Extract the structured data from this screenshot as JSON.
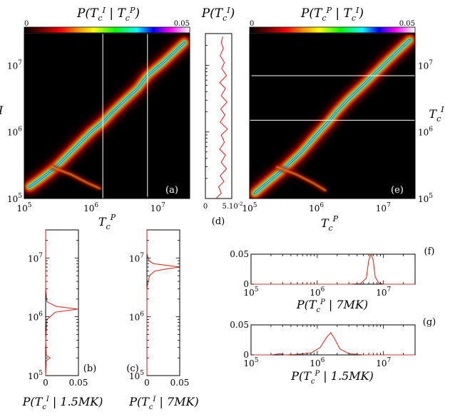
{
  "figure": {
    "colorbar_left": {
      "title": "P(T_c^I | T_c^P)",
      "min_label": "0",
      "max_label": "0.05"
    },
    "colorbar_right": {
      "title": "P(T_c^P | T_c^I)",
      "min_label": "0",
      "max_label": "0.05"
    },
    "panel_d_title": "P(T_c^I)"
  },
  "chart_data": [
    {
      "panel": "a",
      "type": "heatmap",
      "label": "(a)",
      "xlabel": "T_c^P",
      "ylabel": "T_c^I",
      "xscale": "log",
      "yscale": "log",
      "xlim": [
        100000,
        30000000
      ],
      "ylim": [
        100000,
        30000000
      ],
      "xticks": [
        "10^5",
        "10^6",
        "10^7"
      ],
      "yticks": [
        "10^5",
        "10^6",
        "10^7"
      ],
      "color_range": [
        0,
        0.05
      ],
      "vertical_lines_at": [
        1500000,
        7000000
      ],
      "ridge": {
        "x": [
          120000,
          180000,
          300000,
          600000,
          1000000,
          1500000,
          2000000,
          3000000,
          5000000,
          7000000,
          12000000,
          25000000
        ],
        "y": [
          150000,
          200000,
          300000,
          600000,
          1000000,
          1400000,
          1900000,
          2800000,
          4500000,
          7000000,
          11000000,
          22000000
        ]
      }
    },
    {
      "panel": "b",
      "type": "line",
      "label": "(b)",
      "title": "P(T_c^I | 1.5MK)",
      "xlim": [
        0,
        0.05
      ],
      "xticks": [
        "0",
        "0.05"
      ],
      "yscale": "log",
      "ylim": [
        100000,
        30000000
      ],
      "yticks": [
        "10^5",
        "10^6",
        "10^7"
      ],
      "series": [
        {
          "y": [
            100000,
            180000,
            200000,
            220000,
            400000,
            900000,
            1200000,
            1350000,
            1500000,
            1800000,
            3000000,
            30000000
          ],
          "x": [
            0,
            0.001,
            0.007,
            0.001,
            0,
            0.002,
            0.015,
            0.049,
            0.016,
            0.002,
            0,
            0
          ]
        }
      ]
    },
    {
      "panel": "c",
      "type": "line",
      "label": "(c)",
      "title": "P(T_c^I | 7MK)",
      "xlim": [
        0,
        0.05
      ],
      "xticks": [
        "0",
        "0.05"
      ],
      "yscale": "log",
      "ylim": [
        100000,
        30000000
      ],
      "yticks": [
        "10^5",
        "10^6",
        "10^7"
      ],
      "series": [
        {
          "y": [
            100000,
            3000000,
            4000000,
            5000000,
            6000000,
            6500000,
            7000000,
            7500000,
            8000000,
            9000000,
            12000000,
            30000000
          ],
          "x": [
            0,
            0,
            0.002,
            0.004,
            0.012,
            0.03,
            0.05,
            0.03,
            0.01,
            0.003,
            0,
            0
          ]
        }
      ]
    },
    {
      "panel": "d",
      "type": "line",
      "label": "(d)",
      "title": "P(T_c^I)",
      "xlim": [
        0,
        0.05
      ],
      "xticks": [
        "0",
        "5.10^-2"
      ],
      "yscale": "log",
      "ylim": [
        100000,
        30000000
      ],
      "series": [
        {
          "y": [
            100000,
            120000,
            150000,
            180000,
            220000,
            280000,
            350000,
            450000,
            550000,
            700000,
            900000,
            1100000,
            1400000,
            1800000,
            2200000,
            2800000,
            3500000,
            4500000,
            5500000,
            7000000,
            9000000,
            11000000,
            14000000,
            18000000,
            22000000,
            27000000
          ],
          "x": [
            0.02,
            0.03,
            0.025,
            0.035,
            0.028,
            0.04,
            0.03,
            0.038,
            0.027,
            0.036,
            0.03,
            0.042,
            0.028,
            0.037,
            0.029,
            0.041,
            0.03,
            0.038,
            0.027,
            0.04,
            0.031,
            0.036,
            0.028,
            0.034,
            0.03,
            0.033
          ]
        }
      ]
    },
    {
      "panel": "e",
      "type": "heatmap",
      "label": "(e)",
      "xlabel": "T_c^P",
      "ylabel": "T_c^I",
      "xscale": "log",
      "yscale": "log",
      "xlim": [
        100000,
        30000000
      ],
      "ylim": [
        100000,
        30000000
      ],
      "xticks": [
        "10^5",
        "10^6",
        "10^7"
      ],
      "yticks": [
        "10^5",
        "10^6",
        "10^7"
      ],
      "color_range": [
        0,
        0.05
      ],
      "horizontal_lines_at": [
        1500000,
        7000000
      ],
      "ridge": {
        "x": [
          120000,
          180000,
          300000,
          600000,
          1000000,
          1500000,
          2000000,
          3000000,
          5000000,
          7000000,
          12000000,
          25000000
        ],
        "y": [
          120000,
          170000,
          260000,
          500000,
          900000,
          1400000,
          2000000,
          3100000,
          5000000,
          7000000,
          12000000,
          24000000
        ]
      }
    },
    {
      "panel": "f",
      "type": "line",
      "label": "(f)",
      "title": "P(T_c^P | 7MK)",
      "xscale": "log",
      "xlim": [
        100000,
        30000000
      ],
      "xticks": [
        "10^5",
        "10^6",
        "10^7"
      ],
      "ylim": [
        0,
        0.05
      ],
      "yticks": [
        "0",
        "0.05"
      ],
      "series": [
        {
          "x": [
            100000,
            3000000,
            4500000,
            5500000,
            6000000,
            6500000,
            7000000,
            7500000,
            8500000,
            10000000,
            30000000
          ],
          "y": [
            0,
            0,
            0.001,
            0.01,
            0.04,
            0.052,
            0.04,
            0.012,
            0.002,
            0,
            0
          ]
        }
      ]
    },
    {
      "panel": "g",
      "type": "line",
      "label": "(g)",
      "title": "P(T_c^P | 1.5MK)",
      "xscale": "log",
      "xlim": [
        100000,
        30000000
      ],
      "xticks": [
        "10^5",
        "10^6",
        "10^7"
      ],
      "ylim": [
        0,
        0.05
      ],
      "yticks": [
        "0",
        "0.05"
      ],
      "series": [
        {
          "x": [
            100000,
            200000,
            280000,
            320000,
            500000,
            800000,
            1100000,
            1400000,
            1600000,
            1800000,
            2200000,
            3000000,
            5000000,
            30000000
          ],
          "y": [
            0,
            0,
            0.002,
            0,
            0.001,
            0.003,
            0.012,
            0.03,
            0.037,
            0.028,
            0.01,
            0.002,
            0,
            0
          ]
        }
      ]
    }
  ]
}
